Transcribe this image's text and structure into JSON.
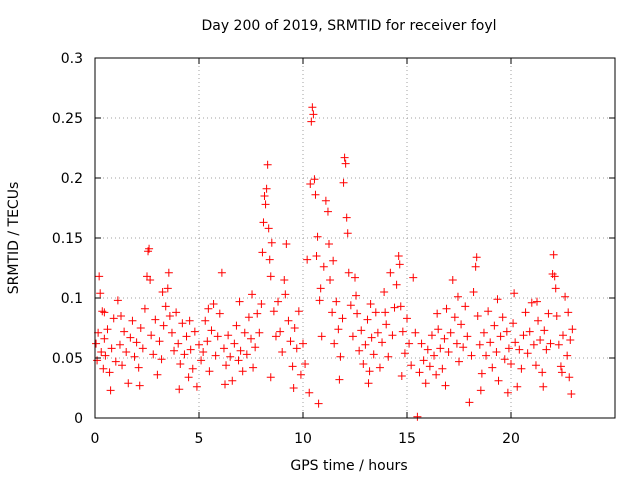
{
  "chart_data": {
    "type": "scatter",
    "title": "Day 200 of 2019, SRMTID for receiver foyl",
    "xlabel": "GPS time / hours",
    "ylabel": "SRMTID / TECUs",
    "xlim": [
      0,
      25
    ],
    "ylim": [
      0,
      0.3
    ],
    "xticks": [
      0,
      5,
      10,
      15,
      20
    ],
    "xtick_labels": [
      "0",
      "5",
      "10",
      "15",
      "20"
    ],
    "yticks": [
      0,
      0.05,
      0.1,
      0.15,
      0.2,
      0.25,
      0.3
    ],
    "ytick_labels": [
      "0",
      "0.05",
      "0.1",
      "0.15",
      "0.2",
      "0.25",
      "0.3"
    ],
    "grid": true,
    "marker": "+",
    "marker_color": "#ff0000",
    "series": [
      {
        "name": "SRMTID",
        "points": [
          [
            0.05,
            0.062
          ],
          [
            0.1,
            0.048
          ],
          [
            0.15,
            0.071
          ],
          [
            0.2,
            0.118
          ],
          [
            0.25,
            0.104
          ],
          [
            0.3,
            0.055
          ],
          [
            0.35,
            0.089
          ],
          [
            0.4,
            0.041
          ],
          [
            0.45,
            0.066
          ],
          [
            0.5,
            0.052
          ],
          [
            0.6,
            0.074
          ],
          [
            0.7,
            0.038
          ],
          [
            0.8,
            0.058
          ],
          [
            0.9,
            0.083
          ],
          [
            1.0,
            0.047
          ],
          [
            1.1,
            0.098
          ],
          [
            1.2,
            0.061
          ],
          [
            1.3,
            0.044
          ],
          [
            1.4,
            0.072
          ],
          [
            1.5,
            0.055
          ],
          [
            1.6,
            0.029
          ],
          [
            1.7,
            0.067
          ],
          [
            1.8,
            0.081
          ],
          [
            1.9,
            0.051
          ],
          [
            2.0,
            0.063
          ],
          [
            2.1,
            0.042
          ],
          [
            2.2,
            0.075
          ],
          [
            2.3,
            0.058
          ],
          [
            2.4,
            0.091
          ],
          [
            2.5,
            0.118
          ],
          [
            2.55,
            0.139
          ],
          [
            2.6,
            0.141
          ],
          [
            2.65,
            0.115
          ],
          [
            2.7,
            0.069
          ],
          [
            2.8,
            0.053
          ],
          [
            2.9,
            0.082
          ],
          [
            3.0,
            0.036
          ],
          [
            3.1,
            0.064
          ],
          [
            3.2,
            0.049
          ],
          [
            3.3,
            0.077
          ],
          [
            3.4,
            0.093
          ],
          [
            3.5,
            0.108
          ],
          [
            3.55,
            0.121
          ],
          [
            3.6,
            0.085
          ],
          [
            3.7,
            0.071
          ],
          [
            3.8,
            0.056
          ],
          [
            3.9,
            0.088
          ],
          [
            4.0,
            0.062
          ],
          [
            4.1,
            0.045
          ],
          [
            4.2,
            0.079
          ],
          [
            4.3,
            0.053
          ],
          [
            4.4,
            0.068
          ],
          [
            4.5,
            0.034
          ],
          [
            4.6,
            0.057
          ],
          [
            4.7,
            0.041
          ],
          [
            4.8,
            0.072
          ],
          [
            4.9,
            0.026
          ],
          [
            5.0,
            0.061
          ],
          [
            5.1,
            0.048
          ],
          [
            5.2,
            0.055
          ],
          [
            5.3,
            0.081
          ],
          [
            5.4,
            0.064
          ],
          [
            5.5,
            0.039
          ],
          [
            5.6,
            0.073
          ],
          [
            5.7,
            0.095
          ],
          [
            5.8,
            0.052
          ],
          [
            5.9,
            0.068
          ],
          [
            6.0,
            0.087
          ],
          [
            6.1,
            0.121
          ],
          [
            6.2,
            0.058
          ],
          [
            6.3,
            0.044
          ],
          [
            6.4,
            0.069
          ],
          [
            6.5,
            0.051
          ],
          [
            6.6,
            0.031
          ],
          [
            6.7,
            0.062
          ],
          [
            6.8,
            0.077
          ],
          [
            6.9,
            0.048
          ],
          [
            7.0,
            0.056
          ],
          [
            7.1,
            0.039
          ],
          [
            7.2,
            0.071
          ],
          [
            7.3,
            0.053
          ],
          [
            7.4,
            0.084
          ],
          [
            7.5,
            0.066
          ],
          [
            7.6,
            0.042
          ],
          [
            7.7,
            0.059
          ],
          [
            7.8,
            0.087
          ],
          [
            7.9,
            0.071
          ],
          [
            8.0,
            0.095
          ],
          [
            8.05,
            0.138
          ],
          [
            8.1,
            0.163
          ],
          [
            8.15,
            0.185
          ],
          [
            8.2,
            0.178
          ],
          [
            8.25,
            0.191
          ],
          [
            8.3,
            0.211
          ],
          [
            8.35,
            0.158
          ],
          [
            8.4,
            0.132
          ],
          [
            8.45,
            0.118
          ],
          [
            8.5,
            0.146
          ],
          [
            8.6,
            0.089
          ],
          [
            8.7,
            0.068
          ],
          [
            8.8,
            0.097
          ],
          [
            8.9,
            0.072
          ],
          [
            9.0,
            0.055
          ],
          [
            9.1,
            0.115
          ],
          [
            9.2,
            0.145
          ],
          [
            9.3,
            0.081
          ],
          [
            9.4,
            0.064
          ],
          [
            9.5,
            0.043
          ],
          [
            9.6,
            0.075
          ],
          [
            9.7,
            0.058
          ],
          [
            9.8,
            0.089
          ],
          [
            9.9,
            0.036
          ],
          [
            10.0,
            0.062
          ],
          [
            10.1,
            0.045
          ],
          [
            10.2,
            0.132
          ],
          [
            10.3,
            0.021
          ],
          [
            10.35,
            0.195
          ],
          [
            10.4,
            0.247
          ],
          [
            10.45,
            0.259
          ],
          [
            10.5,
            0.253
          ],
          [
            10.55,
            0.199
          ],
          [
            10.6,
            0.186
          ],
          [
            10.65,
            0.135
          ],
          [
            10.7,
            0.151
          ],
          [
            10.75,
            0.012
          ],
          [
            10.8,
            0.098
          ],
          [
            10.9,
            0.068
          ],
          [
            11.0,
            0.126
          ],
          [
            11.1,
            0.181
          ],
          [
            11.2,
            0.172
          ],
          [
            11.25,
            0.145
          ],
          [
            11.3,
            0.115
          ],
          [
            11.4,
            0.088
          ],
          [
            11.5,
            0.062
          ],
          [
            11.6,
            0.097
          ],
          [
            11.7,
            0.074
          ],
          [
            11.8,
            0.051
          ],
          [
            11.9,
            0.083
          ],
          [
            11.95,
            0.196
          ],
          [
            12.0,
            0.217
          ],
          [
            12.05,
            0.212
          ],
          [
            12.1,
            0.167
          ],
          [
            12.15,
            0.154
          ],
          [
            12.2,
            0.121
          ],
          [
            12.3,
            0.094
          ],
          [
            12.4,
            0.068
          ],
          [
            12.5,
            0.117
          ],
          [
            12.6,
            0.087
          ],
          [
            12.7,
            0.056
          ],
          [
            12.8,
            0.073
          ],
          [
            12.9,
            0.045
          ],
          [
            13.0,
            0.061
          ],
          [
            13.1,
            0.082
          ],
          [
            13.2,
            0.039
          ],
          [
            13.3,
            0.067
          ],
          [
            13.4,
            0.053
          ],
          [
            13.5,
            0.088
          ],
          [
            13.6,
            0.071
          ],
          [
            13.7,
            0.042
          ],
          [
            13.8,
            0.063
          ],
          [
            13.9,
            0.105
          ],
          [
            14.0,
            0.078
          ],
          [
            14.1,
            0.051
          ],
          [
            14.2,
            0.121
          ],
          [
            14.3,
            0.069
          ],
          [
            14.4,
            0.092
          ],
          [
            14.5,
            0.111
          ],
          [
            14.6,
            0.135
          ],
          [
            14.65,
            0.128
          ],
          [
            14.7,
            0.093
          ],
          [
            14.8,
            0.072
          ],
          [
            14.9,
            0.054
          ],
          [
            15.0,
            0.083
          ],
          [
            15.1,
            0.062
          ],
          [
            15.2,
            0.044
          ],
          [
            15.3,
            0.117
          ],
          [
            15.4,
            0.071
          ],
          [
            15.5,
            0.001
          ],
          [
            15.6,
            0.038
          ],
          [
            15.7,
            0.062
          ],
          [
            15.8,
            0.048
          ],
          [
            15.9,
            0.029
          ],
          [
            16.0,
            0.057
          ],
          [
            16.1,
            0.043
          ],
          [
            16.2,
            0.069
          ],
          [
            16.3,
            0.052
          ],
          [
            16.4,
            0.036
          ],
          [
            16.5,
            0.074
          ],
          [
            16.6,
            0.058
          ],
          [
            16.7,
            0.041
          ],
          [
            16.8,
            0.066
          ],
          [
            16.9,
            0.091
          ],
          [
            17.0,
            0.055
          ],
          [
            17.1,
            0.071
          ],
          [
            17.2,
            0.115
          ],
          [
            17.3,
            0.084
          ],
          [
            17.4,
            0.062
          ],
          [
            17.5,
            0.047
          ],
          [
            17.6,
            0.078
          ],
          [
            17.7,
            0.059
          ],
          [
            17.8,
            0.093
          ],
          [
            17.9,
            0.068
          ],
          [
            18.0,
            0.013
          ],
          [
            18.1,
            0.052
          ],
          [
            18.2,
            0.105
          ],
          [
            18.3,
            0.126
          ],
          [
            18.35,
            0.134
          ],
          [
            18.4,
            0.085
          ],
          [
            18.5,
            0.061
          ],
          [
            18.6,
            0.037
          ],
          [
            18.7,
            0.071
          ],
          [
            18.8,
            0.052
          ],
          [
            18.9,
            0.089
          ],
          [
            19.0,
            0.063
          ],
          [
            19.1,
            0.042
          ],
          [
            19.2,
            0.077
          ],
          [
            19.3,
            0.055
          ],
          [
            19.4,
            0.031
          ],
          [
            19.5,
            0.068
          ],
          [
            19.6,
            0.084
          ],
          [
            19.7,
            0.049
          ],
          [
            19.8,
            0.072
          ],
          [
            19.9,
            0.058
          ],
          [
            20.0,
            0.045
          ],
          [
            20.1,
            0.079
          ],
          [
            20.2,
            0.063
          ],
          [
            20.3,
            0.026
          ],
          [
            20.4,
            0.057
          ],
          [
            20.5,
            0.041
          ],
          [
            20.6,
            0.069
          ],
          [
            20.7,
            0.088
          ],
          [
            20.8,
            0.054
          ],
          [
            20.9,
            0.072
          ],
          [
            21.0,
            0.096
          ],
          [
            21.1,
            0.061
          ],
          [
            21.2,
            0.044
          ],
          [
            21.3,
            0.081
          ],
          [
            21.4,
            0.065
          ],
          [
            21.5,
            0.038
          ],
          [
            21.6,
            0.073
          ],
          [
            21.7,
            0.057
          ],
          [
            21.8,
            0.087
          ],
          [
            21.9,
            0.062
          ],
          [
            22.0,
            0.12
          ],
          [
            22.05,
            0.136
          ],
          [
            22.1,
            0.118
          ],
          [
            22.2,
            0.085
          ],
          [
            22.3,
            0.061
          ],
          [
            22.4,
            0.043
          ],
          [
            22.5,
            0.069
          ],
          [
            22.6,
            0.101
          ],
          [
            22.7,
            0.052
          ],
          [
            22.75,
            0.088
          ],
          [
            22.8,
            0.034
          ],
          [
            22.85,
            0.065
          ],
          [
            22.9,
            0.02
          ],
          [
            22.95,
            0.074
          ],
          [
            0.45,
            0.088
          ],
          [
            1.25,
            0.085
          ],
          [
            3.25,
            0.105
          ],
          [
            4.55,
            0.081
          ],
          [
            5.45,
            0.091
          ],
          [
            6.95,
            0.097
          ],
          [
            7.55,
            0.103
          ],
          [
            9.15,
            0.103
          ],
          [
            10.85,
            0.108
          ],
          [
            11.45,
            0.131
          ],
          [
            12.55,
            0.102
          ],
          [
            13.25,
            0.095
          ],
          [
            13.95,
            0.088
          ],
          [
            16.45,
            0.087
          ],
          [
            17.45,
            0.101
          ],
          [
            19.35,
            0.099
          ],
          [
            20.15,
            0.104
          ],
          [
            21.25,
            0.097
          ],
          [
            22.15,
            0.108
          ],
          [
            0.75,
            0.023
          ],
          [
            2.15,
            0.027
          ],
          [
            4.05,
            0.024
          ],
          [
            6.25,
            0.028
          ],
          [
            8.45,
            0.034
          ],
          [
            9.55,
            0.025
          ],
          [
            11.75,
            0.032
          ],
          [
            13.15,
            0.029
          ],
          [
            14.75,
            0.035
          ],
          [
            16.85,
            0.027
          ],
          [
            18.55,
            0.023
          ],
          [
            19.85,
            0.021
          ],
          [
            21.55,
            0.026
          ],
          [
            22.45,
            0.038
          ]
        ]
      }
    ]
  }
}
